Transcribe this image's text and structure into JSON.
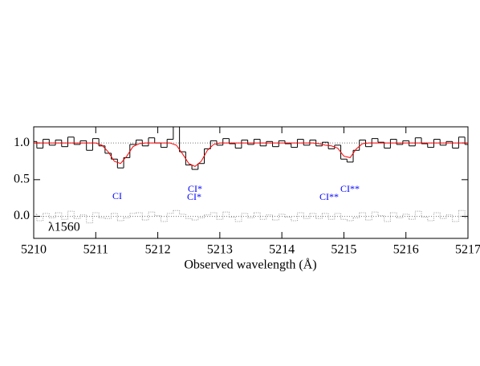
{
  "chart_data": {
    "type": "step",
    "xlabel": "Observed wavelength (Å)",
    "line_label": "λ1560",
    "annotations": [
      "CI",
      "CI*",
      "CI*",
      "CI**",
      "CI**"
    ],
    "annotation_color": "#0000ff",
    "xlim": [
      5210,
      5217
    ],
    "xticks": [
      5210,
      5211,
      5212,
      5213,
      5214,
      5215,
      5216,
      5217
    ],
    "ylim": [
      -0.3,
      1.22
    ],
    "yticks": [
      {
        "value": 0,
        "label": "0.0"
      },
      {
        "value": 0.5,
        "label": "0.5"
      },
      {
        "value": 1,
        "label": "1.0"
      }
    ],
    "hlines": [
      0,
      1
    ],
    "x": [
      5210.0,
      5210.1,
      5210.2,
      5210.3,
      5210.4,
      5210.5,
      5210.6,
      5210.7,
      5210.8,
      5210.9,
      5211.0,
      5211.1,
      5211.2,
      5211.3,
      5211.4,
      5211.5,
      5211.6,
      5211.7,
      5211.8,
      5211.9,
      5212.0,
      5212.1,
      5212.2,
      5212.3,
      5212.4,
      5212.5,
      5212.6,
      5212.7,
      5212.8,
      5212.9,
      5213.0,
      5213.1,
      5213.2,
      5213.3,
      5213.4,
      5213.5,
      5213.6,
      5213.7,
      5213.8,
      5213.9,
      5214.0,
      5214.1,
      5214.2,
      5214.3,
      5214.4,
      5214.5,
      5214.6,
      5214.7,
      5214.8,
      5214.9,
      5215.0,
      5215.1,
      5215.2,
      5215.3,
      5215.4,
      5215.5,
      5215.6,
      5215.7,
      5215.8,
      5215.9,
      5216.0,
      5216.1,
      5216.2,
      5216.3,
      5216.4,
      5216.5,
      5216.6,
      5216.7,
      5216.8,
      5216.9,
      5217.0
    ],
    "series": [
      {
        "style": "step",
        "color": "#000000",
        "values": [
          1.02,
          0.93,
          1.05,
          0.97,
          1.04,
          0.95,
          1.08,
          0.98,
          1.03,
          0.9,
          1.06,
          0.96,
          0.86,
          0.78,
          0.66,
          0.8,
          0.98,
          1.04,
          0.96,
          1.07,
          1.0,
          0.94,
          1.05,
          1.22,
          0.88,
          0.7,
          0.64,
          0.72,
          0.92,
          1.03,
          0.97,
          1.06,
          0.99,
          0.93,
          1.04,
          0.98,
          1.05,
          0.96,
          1.02,
          0.95,
          1.03,
          0.99,
          0.94,
          1.05,
          0.97,
          1.04,
          0.96,
          1.01,
          0.92,
          0.97,
          0.78,
          0.74,
          0.9,
          1.04,
          0.95,
          1.06,
          1.01,
          0.93,
          1.05,
          0.98,
          1.03,
          0.96,
          1.07,
          0.99,
          0.94,
          1.05,
          0.97,
          1.02,
          0.93,
          1.08,
          0.98
        ]
      },
      {
        "style": "line",
        "color": "#ff0000",
        "values": [
          1,
          1,
          1,
          1,
          1,
          1,
          1,
          1,
          1,
          1,
          1,
          0.97,
          0.88,
          0.75,
          0.72,
          0.82,
          0.95,
          0.99,
          1,
          1,
          1,
          1,
          1,
          0.97,
          0.85,
          0.72,
          0.68,
          0.75,
          0.9,
          0.98,
          1,
          1,
          1,
          1,
          1,
          1,
          1,
          1,
          1,
          1,
          1,
          1,
          1,
          1,
          1,
          1,
          0.99,
          0.97,
          0.96,
          0.93,
          0.82,
          0.8,
          0.92,
          0.99,
          1,
          1,
          1,
          1,
          1,
          1,
          1,
          1,
          1,
          1,
          1,
          1,
          1,
          1,
          1,
          1,
          1
        ]
      },
      {
        "style": "dotted-step",
        "color": "#999999",
        "values": [
          0.03,
          -0.06,
          0.04,
          -0.02,
          0.05,
          -0.04,
          0.07,
          -0.03,
          0.02,
          -0.09,
          0.05,
          -0.02,
          -0.03,
          0.04,
          -0.06,
          -0.02,
          0.04,
          0.05,
          -0.05,
          0.06,
          0.01,
          -0.07,
          0.04,
          0.08,
          0.03,
          -0.03,
          -0.05,
          -0.02,
          0.02,
          0.05,
          -0.04,
          0.06,
          -0.01,
          -0.07,
          0.04,
          -0.02,
          0.05,
          -0.04,
          0.02,
          -0.05,
          0.03,
          -0.01,
          -0.06,
          0.05,
          -0.03,
          0.04,
          -0.03,
          0.04,
          -0.04,
          0.04,
          -0.04,
          -0.06,
          -0.02,
          0.05,
          -0.05,
          0.06,
          0.01,
          -0.07,
          0.05,
          -0.02,
          0.03,
          -0.04,
          0.07,
          -0.01,
          -0.06,
          0.05,
          -0.03,
          0.02,
          -0.07,
          0.08,
          -0.02
        ]
      }
    ]
  }
}
